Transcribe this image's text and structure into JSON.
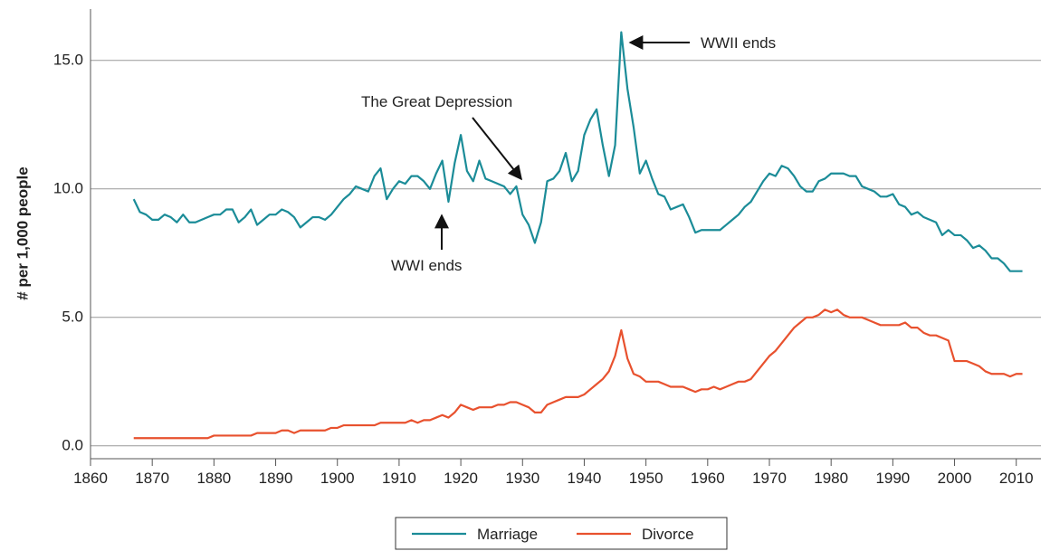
{
  "chart_data": {
    "type": "line",
    "y_label": "# per 1,000 people",
    "annotations": [
      "WWII ends",
      "The Great Depression",
      "WWI ends"
    ],
    "xlim": [
      1860,
      2014
    ],
    "xticks": [
      1860,
      1870,
      1880,
      1890,
      1900,
      1910,
      1920,
      1930,
      1940,
      1950,
      1960,
      1970,
      1980,
      1990,
      2000,
      2010
    ],
    "ylim": [
      -0.5,
      17
    ],
    "yticks": [
      {
        "value": 0,
        "label": "0.0"
      },
      {
        "value": 5,
        "label": "5.0"
      },
      {
        "value": 10,
        "label": "10.0"
      },
      {
        "value": 15,
        "label": "15.0"
      }
    ],
    "grid": true,
    "legend": "bottom",
    "x": [
      1867,
      1868,
      1869,
      1870,
      1871,
      1872,
      1873,
      1874,
      1875,
      1876,
      1877,
      1878,
      1879,
      1880,
      1881,
      1882,
      1883,
      1884,
      1885,
      1886,
      1887,
      1888,
      1889,
      1890,
      1891,
      1892,
      1893,
      1894,
      1895,
      1896,
      1897,
      1898,
      1899,
      1900,
      1901,
      1902,
      1903,
      1904,
      1905,
      1906,
      1907,
      1908,
      1909,
      1910,
      1911,
      1912,
      1913,
      1914,
      1915,
      1916,
      1917,
      1918,
      1919,
      1920,
      1921,
      1922,
      1923,
      1924,
      1925,
      1926,
      1927,
      1928,
      1929,
      1930,
      1931,
      1932,
      1933,
      1934,
      1935,
      1936,
      1937,
      1938,
      1939,
      1940,
      1941,
      1942,
      1943,
      1944,
      1945,
      1946,
      1947,
      1948,
      1949,
      1950,
      1951,
      1952,
      1953,
      1954,
      1955,
      1956,
      1957,
      1958,
      1959,
      1960,
      1961,
      1962,
      1963,
      1964,
      1965,
      1966,
      1967,
      1968,
      1969,
      1970,
      1971,
      1972,
      1973,
      1974,
      1975,
      1976,
      1977,
      1978,
      1979,
      1980,
      1981,
      1982,
      1983,
      1984,
      1985,
      1986,
      1987,
      1988,
      1989,
      1990,
      1991,
      1992,
      1993,
      1994,
      1995,
      1996,
      1997,
      1998,
      1999,
      2000,
      2001,
      2002,
      2003,
      2004,
      2005,
      2006,
      2007,
      2008,
      2009,
      2010,
      2011
    ],
    "series": [
      {
        "name": "Marriage",
        "color": "#1b8c98",
        "values": [
          9.6,
          9.1,
          9.0,
          8.8,
          8.8,
          9.0,
          8.9,
          8.7,
          9.0,
          8.7,
          8.7,
          8.8,
          8.9,
          9.0,
          9.0,
          9.2,
          9.2,
          8.7,
          8.9,
          9.2,
          8.6,
          8.8,
          9.0,
          9.0,
          9.2,
          9.1,
          8.9,
          8.5,
          8.7,
          8.9,
          8.9,
          8.8,
          9.0,
          9.3,
          9.6,
          9.8,
          10.1,
          10.0,
          9.9,
          10.5,
          10.8,
          9.6,
          10.0,
          10.3,
          10.2,
          10.5,
          10.5,
          10.3,
          10.0,
          10.6,
          11.1,
          9.5,
          11.0,
          12.1,
          10.7,
          10.3,
          11.1,
          10.4,
          10.3,
          10.2,
          10.1,
          9.8,
          10.1,
          9.0,
          8.6,
          7.9,
          8.7,
          10.3,
          10.4,
          10.7,
          11.4,
          10.3,
          10.7,
          12.1,
          12.7,
          13.1,
          11.7,
          10.5,
          11.7,
          16.1,
          13.9,
          12.4,
          10.6,
          11.1,
          10.4,
          9.8,
          9.7,
          9.2,
          9.3,
          9.4,
          8.9,
          8.3,
          8.4,
          8.4,
          8.4,
          8.4,
          8.6,
          8.8,
          9.0,
          9.3,
          9.5,
          9.9,
          10.3,
          10.6,
          10.5,
          10.9,
          10.8,
          10.5,
          10.1,
          9.9,
          9.9,
          10.3,
          10.4,
          10.6,
          10.6,
          10.6,
          10.5,
          10.5,
          10.1,
          10.0,
          9.9,
          9.7,
          9.7,
          9.8,
          9.4,
          9.3,
          9.0,
          9.1,
          8.9,
          8.8,
          8.7,
          8.2,
          8.4,
          8.2,
          8.2,
          8.0,
          7.7,
          7.8,
          7.6,
          7.3,
          7.3,
          7.1,
          6.8,
          6.8,
          6.8
        ]
      },
      {
        "name": "Divorce",
        "color": "#e8512e",
        "values": [
          0.3,
          0.3,
          0.3,
          0.3,
          0.3,
          0.3,
          0.3,
          0.3,
          0.3,
          0.3,
          0.3,
          0.3,
          0.3,
          0.4,
          0.4,
          0.4,
          0.4,
          0.4,
          0.4,
          0.4,
          0.5,
          0.5,
          0.5,
          0.5,
          0.6,
          0.6,
          0.5,
          0.6,
          0.6,
          0.6,
          0.6,
          0.6,
          0.7,
          0.7,
          0.8,
          0.8,
          0.8,
          0.8,
          0.8,
          0.8,
          0.9,
          0.9,
          0.9,
          0.9,
          0.9,
          1.0,
          0.9,
          1.0,
          1.0,
          1.1,
          1.2,
          1.1,
          1.3,
          1.6,
          1.5,
          1.4,
          1.5,
          1.5,
          1.5,
          1.6,
          1.6,
          1.7,
          1.7,
          1.6,
          1.5,
          1.3,
          1.3,
          1.6,
          1.7,
          1.8,
          1.9,
          1.9,
          1.9,
          2.0,
          2.2,
          2.4,
          2.6,
          2.9,
          3.5,
          4.5,
          3.4,
          2.8,
          2.7,
          2.5,
          2.5,
          2.5,
          2.4,
          2.3,
          2.3,
          2.3,
          2.2,
          2.1,
          2.2,
          2.2,
          2.3,
          2.2,
          2.3,
          2.4,
          2.5,
          2.5,
          2.6,
          2.9,
          3.2,
          3.5,
          3.7,
          4.0,
          4.3,
          4.6,
          4.8,
          5.0,
          5.0,
          5.1,
          5.3,
          5.2,
          5.3,
          5.1,
          5.0,
          5.0,
          5.0,
          4.9,
          4.8,
          4.7,
          4.7,
          4.7,
          4.7,
          4.8,
          4.6,
          4.6,
          4.4,
          4.3,
          4.3,
          4.2,
          4.1,
          3.3,
          3.3,
          3.3,
          3.2,
          3.1,
          2.9,
          2.8,
          2.8,
          2.8,
          2.7,
          2.8,
          2.8
        ]
      }
    ]
  }
}
